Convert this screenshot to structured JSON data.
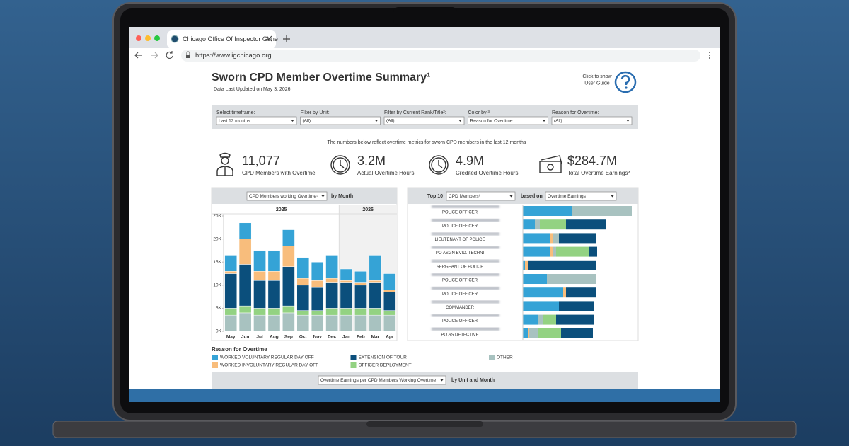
{
  "browser": {
    "tab_title": "Chicago Office Of Inspector Gene",
    "url": "https://www.igchicago.org"
  },
  "header": {
    "title": "Sworn CPD Member Overtime Summary¹",
    "updated": "Data Last Updated on May 3, 2026",
    "guide": [
      "Click to show",
      "User Guide"
    ]
  },
  "filters": [
    {
      "label": "Select timeframe:",
      "value": "Last 12 months"
    },
    {
      "label": "Filter by Unit:",
      "value": "(All)"
    },
    {
      "label": "Filter by Current Rank/Title²:",
      "value": "(All)"
    },
    {
      "label": "Color by:³",
      "value": "Reason for Overtime"
    },
    {
      "label": "Reason for Overtime:",
      "value": "(All)"
    }
  ],
  "note": "The numbers below reflect overtime metrics for sworn CPD members in the last 12 months",
  "kpis": [
    {
      "value": "11,077",
      "label": "CPD Members with Overtime"
    },
    {
      "value": "3.2M",
      "label": "Actual Overtime Hours"
    },
    {
      "value": "4.9M",
      "label": "Credited Overtime Hours"
    },
    {
      "value": "$284.7M",
      "label": "Total Overtime Earnings⁴"
    }
  ],
  "monthly_panel": {
    "dropdown": "CPD Members working Overtime⁵",
    "suffix": "by Month",
    "years": [
      "2025",
      "2026"
    ]
  },
  "top_panel": {
    "prefix": "Top 10",
    "dropdown": "CPD Members⁶",
    "based_on": "based on",
    "metric": "Overtime Earnings"
  },
  "legend_title": "Reason for Overtime",
  "bottom_panel": {
    "dropdown": "Overtime Earnings per CPD Members Working Overtime",
    "suffix": "by Unit and Month"
  },
  "chart_data": [
    {
      "type": "stacked_bar",
      "categories": [
        "May",
        "Jun",
        "Jul",
        "Aug",
        "Sep",
        "Oct",
        "Nov",
        "Dec",
        "Jan",
        "Feb",
        "Mar",
        "Apr"
      ],
      "series": [
        {
          "name": "WORKED VOLUNTARY REGULAR DAY OFF",
          "color": "#35a3d6",
          "values": [
            3500,
            3500,
            4500,
            4500,
            3500,
            4500,
            4000,
            5000,
            2500,
            2500,
            5500,
            3500
          ]
        },
        {
          "name": "WORKED INVOLUNTARY REGULAR DAY OFF",
          "color": "#f8bd7c",
          "values": [
            500,
            5500,
            2000,
            2000,
            4500,
            1500,
            1500,
            1000,
            500,
            500,
            500,
            500
          ]
        },
        {
          "name": "EXTENSION OF TOUR",
          "color": "#0b4f7c",
          "values": [
            7500,
            9000,
            6000,
            6000,
            8500,
            5500,
            5000,
            5500,
            5500,
            5000,
            5500,
            4000
          ]
        },
        {
          "name": "OFFICER DEPLOYMENT",
          "color": "#93d282",
          "values": [
            1500,
            1500,
            1500,
            1500,
            1500,
            1000,
            1000,
            1500,
            1500,
            1500,
            1500,
            1000
          ]
        },
        {
          "name": "OTHER",
          "color": "#a8c2c0",
          "values": [
            3500,
            4000,
            3500,
            3500,
            4000,
            3500,
            3500,
            3500,
            3500,
            3500,
            3500,
            3500
          ]
        }
      ],
      "ylim": [
        0,
        25000
      ],
      "yticks": [
        {
          "value": 0,
          "label": "0K"
        },
        {
          "value": 5000,
          "label": "5K"
        },
        {
          "value": 10000,
          "label": "10K"
        },
        {
          "value": 15000,
          "label": "15K"
        },
        {
          "value": 20000,
          "label": "20K"
        },
        {
          "value": 25000,
          "label": "25K"
        }
      ]
    },
    {
      "type": "hbar_stacked",
      "categories": [
        "POLICE OFFICER",
        "POLICE OFFICER",
        "LIEUTENANT OF POLICE",
        "PO ASGN EVID. TECHNI",
        "SERGEANT OF POLICE",
        "POLICE OFFICER",
        "POLICE OFFICER",
        "COMMANDER",
        "POLICE OFFICER",
        "PO AS DETECTIVE"
      ],
      "series": [
        {
          "color": "#35a3d6",
          "values": [
            69,
            17,
            39,
            39,
            3,
            34,
            57,
            51,
            21,
            7
          ]
        },
        {
          "color": "#f8bd7c",
          "values": [
            0,
            0,
            3,
            3,
            4,
            0,
            4,
            0,
            0,
            2
          ]
        },
        {
          "color": "#a8c2c0",
          "values": [
            85,
            7,
            9,
            5,
            0,
            69,
            0,
            0,
            8,
            12
          ]
        },
        {
          "color": "#93d282",
          "values": [
            0,
            37,
            0,
            46,
            0,
            0,
            0,
            0,
            18,
            33
          ]
        },
        {
          "color": "#0b4f7c",
          "values": [
            0,
            56,
            52,
            12,
            97,
            0,
            42,
            50,
            53,
            45
          ]
        }
      ]
    }
  ]
}
